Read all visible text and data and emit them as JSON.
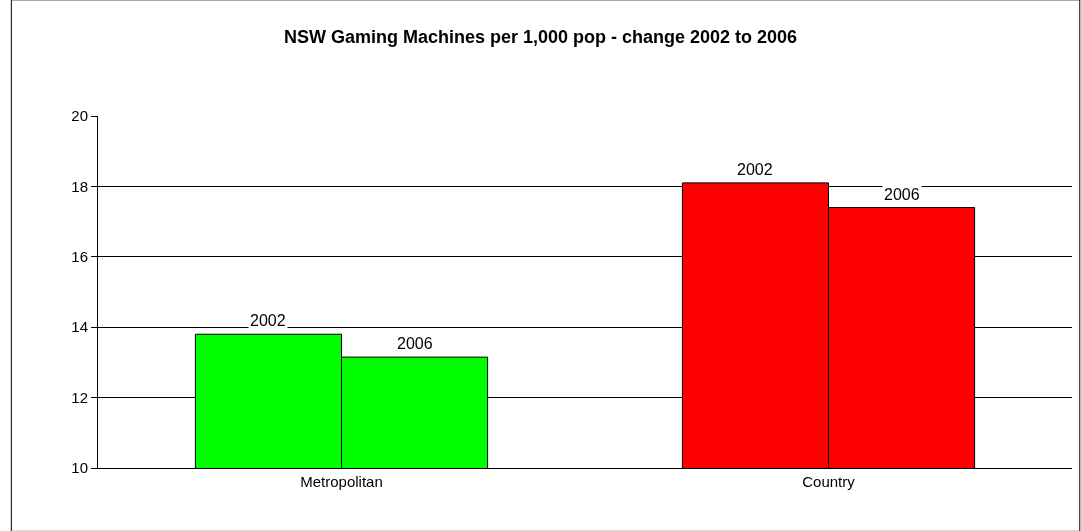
{
  "chart_data": {
    "type": "bar",
    "title": "NSW Gaming Machines per 1,000 pop - change 2002 to 2006",
    "categories": [
      "Metropolitan",
      "Country"
    ],
    "series": [
      {
        "name": "2002",
        "colors": [
          "#00ff00",
          "#ff0000"
        ],
        "values": [
          13.8,
          18.1
        ]
      },
      {
        "name": "2006",
        "colors": [
          "#00ff00",
          "#ff0000"
        ],
        "values": [
          13.15,
          17.4
        ]
      }
    ],
    "ylim": [
      10,
      20
    ],
    "yticks": [
      10,
      12,
      14,
      16,
      18,
      20
    ],
    "grid": "y",
    "legend": false
  }
}
